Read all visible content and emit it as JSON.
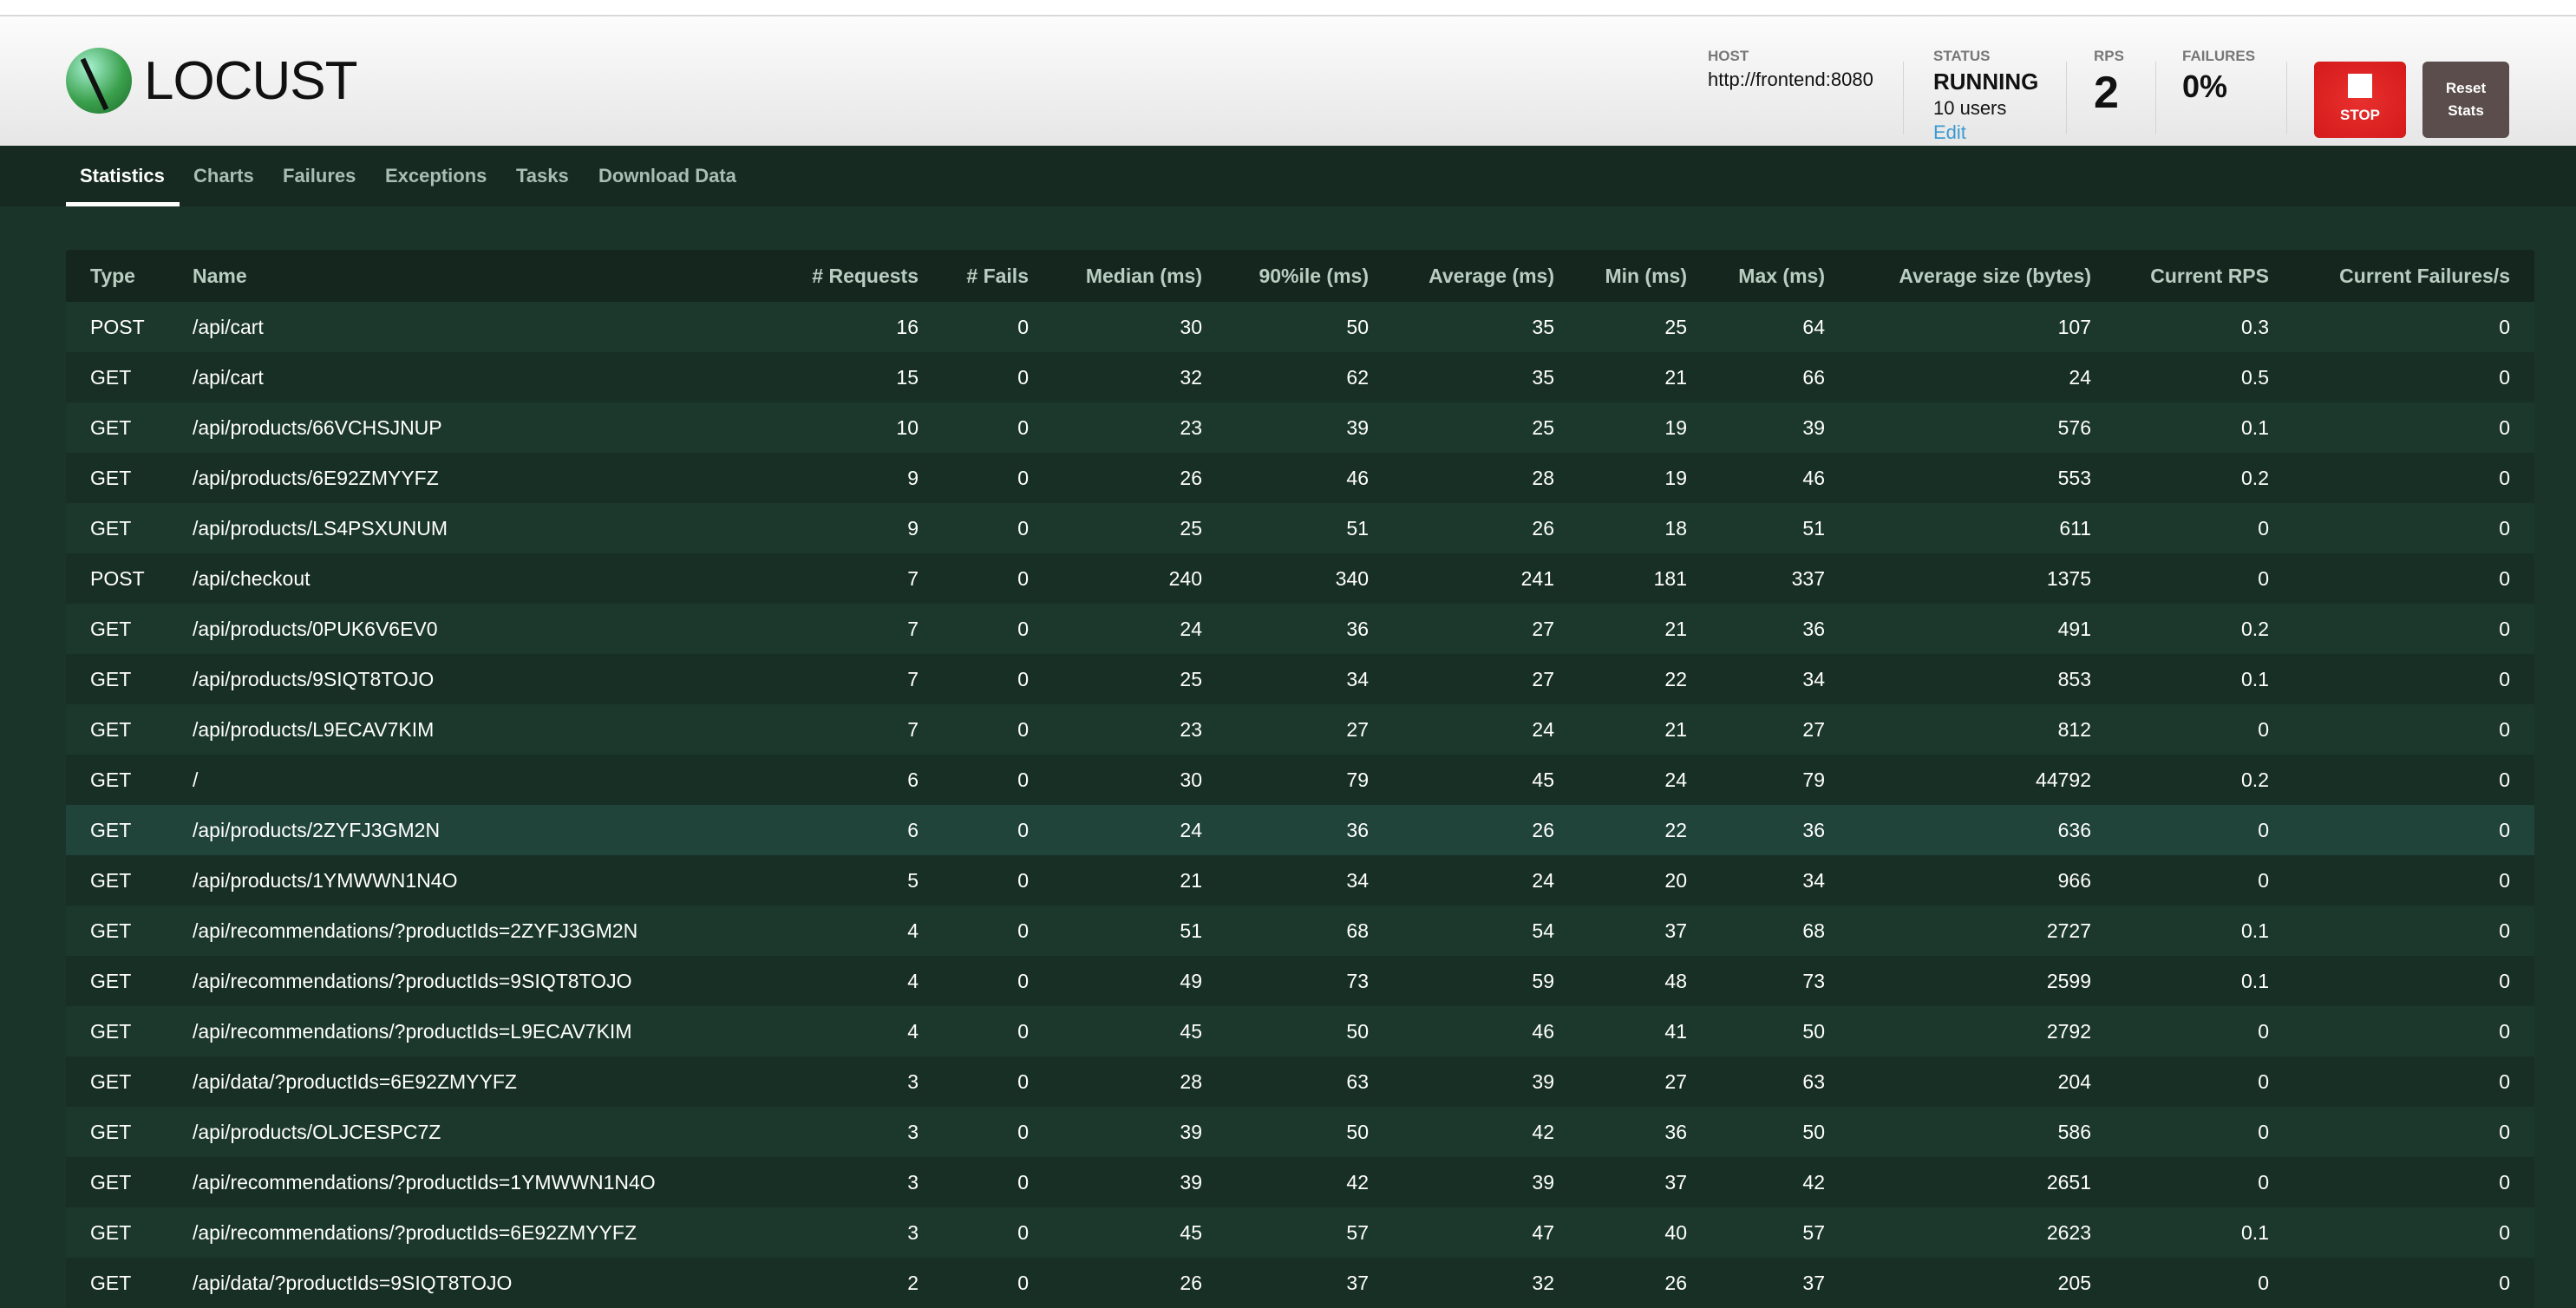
{
  "app": {
    "logo_text": "LOCUST"
  },
  "header": {
    "host": {
      "label": "HOST",
      "value": "http://frontend:8080"
    },
    "status": {
      "label": "STATUS",
      "value": "RUNNING",
      "users": "10 users",
      "edit": "Edit"
    },
    "rps": {
      "label": "RPS",
      "value": "2"
    },
    "failures": {
      "label": "FAILURES",
      "value": "0%"
    },
    "stop_label": "STOP",
    "reset_label_1": "Reset",
    "reset_label_2": "Stats",
    "colors": {
      "stop": "#d41a1a",
      "reset": "#5a4d4c",
      "edit_link": "#3a9ad0"
    }
  },
  "tabs": [
    {
      "label": "Statistics",
      "active": true
    },
    {
      "label": "Charts"
    },
    {
      "label": "Failures"
    },
    {
      "label": "Exceptions"
    },
    {
      "label": "Tasks"
    },
    {
      "label": "Download Data"
    }
  ],
  "table": {
    "columns": [
      "Type",
      "Name",
      "# Requests",
      "# Fails",
      "Median (ms)",
      "90%ile (ms)",
      "Average (ms)",
      "Min (ms)",
      "Max (ms)",
      "Average size (bytes)",
      "Current RPS",
      "Current Failures/s"
    ],
    "rows": [
      [
        "POST",
        "/api/cart",
        "16",
        "0",
        "30",
        "50",
        "35",
        "25",
        "64",
        "107",
        "0.3",
        "0"
      ],
      [
        "GET",
        "/api/cart",
        "15",
        "0",
        "32",
        "62",
        "35",
        "21",
        "66",
        "24",
        "0.5",
        "0"
      ],
      [
        "GET",
        "/api/products/66VCHSJNUP",
        "10",
        "0",
        "23",
        "39",
        "25",
        "19",
        "39",
        "576",
        "0.1",
        "0"
      ],
      [
        "GET",
        "/api/products/6E92ZMYYFZ",
        "9",
        "0",
        "26",
        "46",
        "28",
        "19",
        "46",
        "553",
        "0.2",
        "0"
      ],
      [
        "GET",
        "/api/products/LS4PSXUNUM",
        "9",
        "0",
        "25",
        "51",
        "26",
        "18",
        "51",
        "611",
        "0",
        "0"
      ],
      [
        "POST",
        "/api/checkout",
        "7",
        "0",
        "240",
        "340",
        "241",
        "181",
        "337",
        "1375",
        "0",
        "0"
      ],
      [
        "GET",
        "/api/products/0PUK6V6EV0",
        "7",
        "0",
        "24",
        "36",
        "27",
        "21",
        "36",
        "491",
        "0.2",
        "0"
      ],
      [
        "GET",
        "/api/products/9SIQT8TOJO",
        "7",
        "0",
        "25",
        "34",
        "27",
        "22",
        "34",
        "853",
        "0.1",
        "0"
      ],
      [
        "GET",
        "/api/products/L9ECAV7KIM",
        "7",
        "0",
        "23",
        "27",
        "24",
        "21",
        "27",
        "812",
        "0",
        "0"
      ],
      [
        "GET",
        "/",
        "6",
        "0",
        "30",
        "79",
        "45",
        "24",
        "79",
        "44792",
        "0.2",
        "0"
      ],
      [
        "GET",
        "/api/products/2ZYFJ3GM2N",
        "6",
        "0",
        "24",
        "36",
        "26",
        "22",
        "36",
        "636",
        "0",
        "0"
      ],
      [
        "GET",
        "/api/products/1YMWWN1N4O",
        "5",
        "0",
        "21",
        "34",
        "24",
        "20",
        "34",
        "966",
        "0",
        "0"
      ],
      [
        "GET",
        "/api/recommendations/?productIds=2ZYFJ3GM2N",
        "4",
        "0",
        "51",
        "68",
        "54",
        "37",
        "68",
        "2727",
        "0.1",
        "0"
      ],
      [
        "GET",
        "/api/recommendations/?productIds=9SIQT8TOJO",
        "4",
        "0",
        "49",
        "73",
        "59",
        "48",
        "73",
        "2599",
        "0.1",
        "0"
      ],
      [
        "GET",
        "/api/recommendations/?productIds=L9ECAV7KIM",
        "4",
        "0",
        "45",
        "50",
        "46",
        "41",
        "50",
        "2792",
        "0",
        "0"
      ],
      [
        "GET",
        "/api/data/?productIds=6E92ZMYYFZ",
        "3",
        "0",
        "28",
        "63",
        "39",
        "27",
        "63",
        "204",
        "0",
        "0"
      ],
      [
        "GET",
        "/api/products/OLJCESPC7Z",
        "3",
        "0",
        "39",
        "50",
        "42",
        "36",
        "50",
        "586",
        "0",
        "0"
      ],
      [
        "GET",
        "/api/recommendations/?productIds=1YMWWN1N4O",
        "3",
        "0",
        "39",
        "42",
        "39",
        "37",
        "42",
        "2651",
        "0",
        "0"
      ],
      [
        "GET",
        "/api/recommendations/?productIds=6E92ZMYYFZ",
        "3",
        "0",
        "45",
        "57",
        "47",
        "40",
        "57",
        "2623",
        "0.1",
        "0"
      ],
      [
        "GET",
        "/api/data/?productIds=9SIQT8TOJO",
        "2",
        "0",
        "26",
        "37",
        "32",
        "26",
        "37",
        "205",
        "0",
        "0"
      ]
    ]
  }
}
